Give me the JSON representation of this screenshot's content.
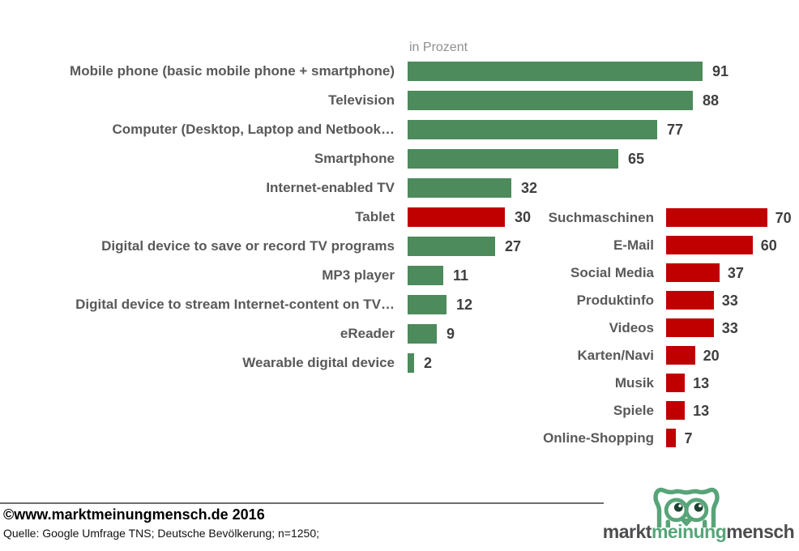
{
  "header": {
    "unit_label": "in Prozent"
  },
  "chart_data": [
    {
      "type": "bar",
      "orientation": "horizontal",
      "title": "",
      "unit": "in Prozent",
      "categories": [
        "Mobile phone (basic mobile phone + smartphone)",
        "Television",
        "Computer (Desktop, Laptop and Netbook…",
        "Smartphone",
        "Internet-enabled TV",
        "Tablet",
        "Digital device to save or record TV programs",
        "MP3 player",
        "Digital device to stream Internet-content on TV…",
        "eReader",
        "Wearable digital device"
      ],
      "values": [
        91,
        88,
        77,
        65,
        32,
        30,
        27,
        11,
        12,
        9,
        2
      ],
      "bar_colors": [
        "#4d8a5c",
        "#4d8a5c",
        "#4d8a5c",
        "#4d8a5c",
        "#4d8a5c",
        "#c00000",
        "#4d8a5c",
        "#4d8a5c",
        "#4d8a5c",
        "#4d8a5c",
        "#4d8a5c"
      ],
      "xlim": [
        0,
        100
      ],
      "grid": false,
      "value_labels": true,
      "legend": "none"
    },
    {
      "type": "bar",
      "orientation": "horizontal",
      "title": "",
      "categories": [
        "Suchmaschinen",
        "E-Mail",
        "Social Media",
        "Produktinfo",
        "Videos",
        "Karten/Navi",
        "Musik",
        "Spiele",
        "Online-Shopping"
      ],
      "values": [
        70,
        60,
        37,
        33,
        33,
        20,
        13,
        13,
        7
      ],
      "bar_colors": [
        "#c00000",
        "#c00000",
        "#c00000",
        "#c00000",
        "#c00000",
        "#c00000",
        "#c00000",
        "#c00000",
        "#c00000"
      ],
      "xlim": [
        0,
        100
      ],
      "grid": false,
      "value_labels": true,
      "legend": "none"
    }
  ],
  "footer": {
    "copyright": "©www.marktmeinungmensch.de 2016",
    "source": "Quelle: Google Umfrage TNS; Deutsche Bevölkerung; n=1250;",
    "logo": {
      "icon": "owl-icon",
      "part1": "markt",
      "part2": "meinung",
      "part3": "mensch"
    }
  },
  "colors": {
    "bar_green": "#4d8a5c",
    "bar_red": "#c00000",
    "category_label_gray": "#595959",
    "value_label_gray": "#3f3f3f",
    "unit_label_gray": "#8f8f8f",
    "logo_green": "#57a478",
    "logo_gray": "#4d4d4f",
    "divider_gray": "#6e6e6e",
    "background": "#ffffff"
  }
}
